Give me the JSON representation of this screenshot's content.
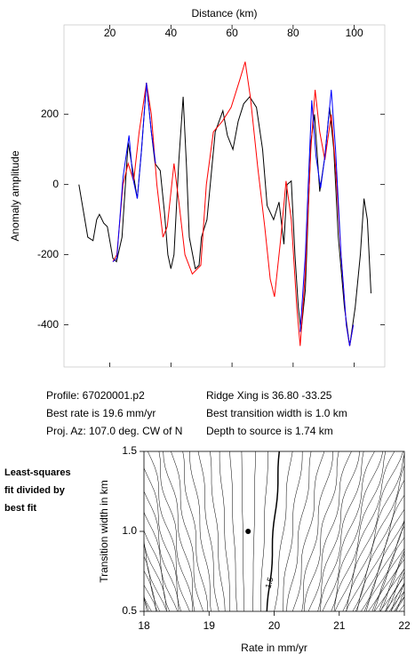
{
  "chart_data": [
    {
      "type": "line",
      "xlabel": "Distance (km)",
      "ylabel": "Anomaly amplitude",
      "xlim": [
        5,
        110
      ],
      "xticks": [
        20,
        40,
        60,
        80,
        100
      ],
      "ylim": [
        -520,
        455
      ],
      "yticks": [
        200,
        0,
        -200,
        -400
      ],
      "series": [
        {
          "color": "#000000",
          "x": [
            9.9,
            12.8,
            14.5,
            15.7,
            16.6,
            18,
            19.2,
            21,
            22.2,
            24,
            26,
            27.5,
            29,
            30.4,
            32,
            33.6,
            34.8,
            36.5,
            37.9,
            39,
            40,
            41,
            42.6,
            44,
            45.1,
            46,
            48,
            49.2,
            50,
            51.8,
            54.5,
            57,
            58.5,
            60.3,
            62,
            63.8,
            65.8,
            68,
            70,
            71.5,
            73.6,
            75.4,
            77,
            78,
            79.4,
            80.6,
            81.7,
            82.6,
            84,
            85.8,
            87,
            88.7,
            90.4,
            91.9,
            93.3,
            94.8,
            96.8,
            98.5,
            100.3,
            102,
            103.2,
            104.3,
            105.5
          ],
          "values": [
            0,
            -150,
            -160,
            -100,
            -85,
            -110,
            -120,
            -210,
            -220,
            -150,
            120,
            40,
            -40,
            100,
            290,
            150,
            60,
            40,
            -80,
            -200,
            -240,
            -200,
            70,
            250,
            50,
            -150,
            -240,
            -230,
            -150,
            -100,
            150,
            210,
            140,
            100,
            180,
            230,
            250,
            220,
            100,
            -60,
            -100,
            -50,
            -170,
            0,
            10,
            -200,
            -350,
            -420,
            -300,
            120,
            200,
            -20,
            80,
            220,
            100,
            -150,
            -350,
            -460,
            -350,
            -200,
            -40,
            -100,
            -310
          ]
        },
        {
          "color": "#ff0000",
          "x": [
            21,
            22.3,
            24.3,
            26,
            27.8,
            29.6,
            32,
            33.6,
            35.4,
            37.4,
            38.8,
            41,
            42.6,
            44.6,
            47,
            49.8,
            51.6,
            53.9,
            56.8,
            59.7,
            62.6,
            64.3,
            66,
            68.4,
            70.7,
            72.5,
            73.9,
            76,
            77.7,
            79.4,
            81.2,
            82.3,
            84,
            85.8,
            87.2,
            88.7,
            90.4,
            92.5,
            93.9,
            95.7,
            97.4,
            98.5,
            99.7
          ],
          "values": [
            -220,
            -200,
            0,
            60,
            10,
            150,
            290,
            200,
            0,
            -150,
            -120,
            60,
            -50,
            -200,
            -255,
            -230,
            0,
            150,
            180,
            220,
            300,
            350,
            250,
            50,
            -120,
            -270,
            -320,
            -150,
            10,
            -100,
            -350,
            -460,
            -250,
            100,
            270,
            150,
            70,
            200,
            50,
            -200,
            -400,
            -460,
            -400
          ]
        },
        {
          "color": "#0000ff",
          "x": [
            21,
            22.3,
            24.3,
            26.3,
            27.5,
            29,
            30.4,
            32,
            33.6,
            35,
            60,
            82.3,
            84,
            86.1,
            87.5,
            89,
            90.4,
            92.5,
            93.9,
            95.7,
            97.4,
            98.5,
            99.7
          ],
          "values": [
            -220,
            -210,
            20,
            140,
            20,
            -40,
            100,
            290,
            150,
            60,
            null,
            -420,
            -200,
            240,
            80,
            -10,
            80,
            270,
            100,
            -200,
            -400,
            -460,
            -400
          ]
        }
      ]
    },
    {
      "type": "contour",
      "xlabel": "Rate in mm/yr",
      "ylabel": "Transition width in km",
      "xlim": [
        18,
        22
      ],
      "xticks": [
        18,
        19,
        20,
        21,
        22
      ],
      "ylim": [
        0.5,
        1.5
      ],
      "yticks": [
        0.5,
        {
          "value": 1,
          "label": "1.0"
        },
        1.5
      ],
      "point": {
        "x": 19.6,
        "y": 1.0
      },
      "contour_labels": [
        1.5
      ],
      "annotation": [
        "Least-squares",
        "fit divided by",
        "best fit"
      ]
    }
  ],
  "info": {
    "left": [
      "Profile: 67020001.p2",
      "Best rate is 19.6 mm/yr",
      "Proj. Az: 107.0 deg. CW of N"
    ],
    "right": [
      "Ridge Xing is 36.80 -33.25",
      "Best transition width is 1.0 km",
      "Depth to source is   1.74 km"
    ]
  }
}
